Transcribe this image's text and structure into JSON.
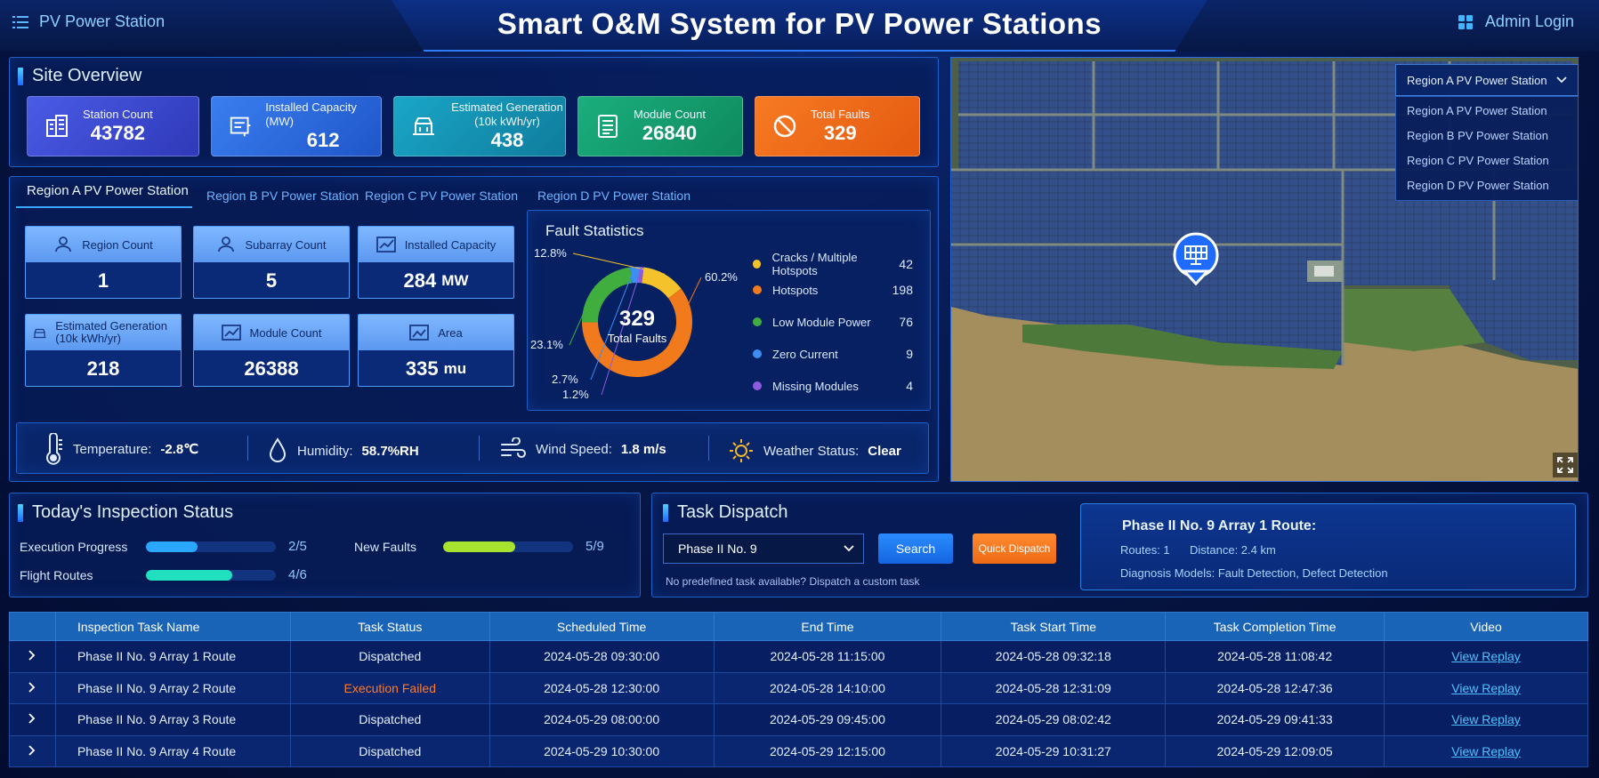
{
  "header": {
    "app_name": "PV Power Station",
    "title": "Smart O&M System for PV Power Stations",
    "login": "Admin Login"
  },
  "overview": {
    "title": "Site Overview",
    "cards": [
      {
        "label": "Station Count",
        "value": "43782",
        "color": "#3d4fd6",
        "icon": "building-icon"
      },
      {
        "label": "Installed Capacity (MW)",
        "value": "612",
        "color": "#2a6ad8",
        "icon": "capacity-icon"
      },
      {
        "label": "Estimated Generation (10k kWh/yr)",
        "value": "438",
        "color": "#138fb0",
        "icon": "generation-icon"
      },
      {
        "label": "Module Count",
        "value": "26840",
        "color": "#149a6e",
        "icon": "module-icon"
      },
      {
        "label": "Total Faults",
        "value": "329",
        "color": "#ee6a17",
        "icon": "prohibit-icon"
      }
    ]
  },
  "tabs": [
    "Region A PV Power Station",
    "Region B PV Power Station",
    "Region C PV Power Station",
    "Region D PV Power Station"
  ],
  "region_cards": [
    {
      "label": "Region Count",
      "value": "1",
      "unit": ""
    },
    {
      "label": "Subarray Count",
      "value": "5",
      "unit": ""
    },
    {
      "label": "Installed Capacity",
      "value": "284",
      "unit": "MW"
    },
    {
      "label": "Estimated Generation (10k kWh/yr)",
      "value": "218",
      "unit": ""
    },
    {
      "label": "Module Count",
      "value": "26388",
      "unit": ""
    },
    {
      "label": "Area",
      "value": "335",
      "unit": "mu"
    }
  ],
  "fault_stats": {
    "title": "Fault Statistics",
    "center_value": "329",
    "center_label": "Total Faults"
  },
  "chart_data": {
    "type": "pie",
    "donut": true,
    "categories": [
      "Cracks / Multiple Hotspots",
      "Hotspots",
      "Low Module Power",
      "Zero Current",
      "Missing Modules"
    ],
    "values": [
      42,
      198,
      76,
      9,
      4
    ],
    "colors": [
      "#f4c22b",
      "#f07a1c",
      "#3fae3f",
      "#3d8ef0",
      "#8e5be0"
    ],
    "slice_labels": [
      "12.8%",
      "60.2%",
      "23.1%",
      "2.7%",
      "1.2%"
    ],
    "legend": "right"
  },
  "weather": {
    "temp_label": "Temperature:",
    "temp_value": "-2.8℃",
    "hum_label": "Humidity:",
    "hum_value": "58.7%RH",
    "wind_label": "Wind Speed:",
    "wind_value": "1.8 m/s",
    "status_label": "Weather Status:",
    "status_value": "Clear"
  },
  "map": {
    "select_value": "Region A PV Power Station",
    "options": [
      "Region A PV Power Station",
      "Region B PV Power Station",
      "Region C PV Power Station",
      "Region D PV Power Station"
    ]
  },
  "inspection": {
    "title": "Today's Inspection Status",
    "rows": [
      {
        "label": "Execution Progress",
        "value": "2/5",
        "fraction": 0.4,
        "color": "#2aa8ff"
      },
      {
        "label": "Flight Routes",
        "value": "4/6",
        "fraction": 0.6667,
        "color": "#21e0c0"
      },
      {
        "label": "New Faults",
        "value": "5/9",
        "fraction": 0.5556,
        "color": "#a6e22e"
      }
    ]
  },
  "dispatch": {
    "title": "Task Dispatch",
    "select_value": "Phase II No. 9",
    "search": "Search",
    "quick": "Quick Dispatch",
    "hint": "No predefined task available? Dispatch a custom task",
    "route_title": "Phase II No. 9 Array 1 Route:",
    "routes_label": "Routes: 1",
    "distance_label": "Distance: 2.4 km",
    "models_label": "Diagnosis Models: Fault Detection, Defect Detection"
  },
  "table": {
    "headers": [
      "",
      "Inspection Task Name",
      "Task Status",
      "Scheduled Time",
      "End Time",
      "Task Start Time",
      "Task Completion Time",
      "Video"
    ],
    "rows": [
      [
        "Phase II No. 9 Array 1 Route",
        "Dispatched",
        "2024-05-28 09:30:00",
        "2024-05-28 11:15:00",
        "2024-05-28 09:32:18",
        "2024-05-28 11:08:42",
        "View Replay"
      ],
      [
        "Phase II No. 9 Array 2 Route",
        "Execution Failed",
        "2024-05-28 12:30:00",
        "2024-05-28 14:10:00",
        "2024-05-28 12:31:09",
        "2024-05-28 12:47:36",
        "View Replay"
      ],
      [
        "Phase II No. 9 Array 3 Route",
        "Dispatched",
        "2024-05-29 08:00:00",
        "2024-05-29 09:45:00",
        "2024-05-29 08:02:42",
        "2024-05-29 09:41:33",
        "View Replay"
      ],
      [
        "Phase II No. 9 Array 4 Route",
        "Dispatched",
        "2024-05-29 10:30:00",
        "2024-05-29 12:15:00",
        "2024-05-29 10:31:27",
        "2024-05-29 12:09:05",
        "View Replay"
      ]
    ],
    "fail_color": "#ff7a2a"
  }
}
